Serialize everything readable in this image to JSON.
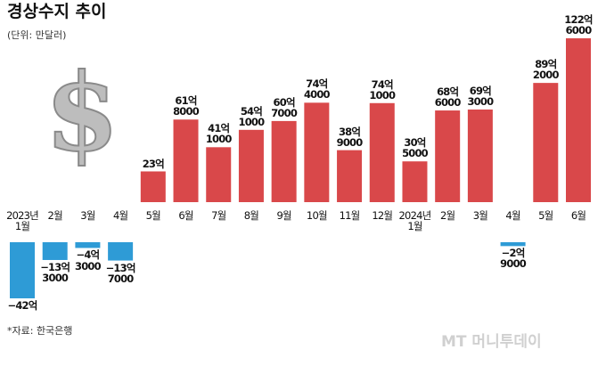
{
  "title": "경상수지 추이",
  "subtitle": "(단위: 만달러)",
  "source": "*자료: 한국은행",
  "watermark": "MT 머니투데이",
  "chart_data": {
    "type": "bar",
    "categories": [
      "2023년\n1월",
      "2월",
      "3월",
      "4월",
      "5월",
      "6월",
      "7월",
      "8월",
      "9월",
      "10월",
      "11월",
      "12월",
      "2024년\n1월",
      "2월",
      "3월",
      "4월",
      "5월",
      "6월"
    ],
    "values": [
      -420000,
      -133000,
      -43000,
      -137000,
      230000,
      618000,
      411000,
      541000,
      607000,
      744000,
      389000,
      741000,
      305000,
      686000,
      693000,
      -29000,
      892000,
      1226000
    ],
    "value_labels": [
      "−42억",
      "−13억\n3000",
      "−4억\n3000",
      "−13억\n7000",
      "23억",
      "61억\n8000",
      "41억\n1000",
      "54억\n1000",
      "60억\n7000",
      "74억\n4000",
      "38억\n9000",
      "74억\n1000",
      "30억\n5000",
      "68억\n6000",
      "69억\n3000",
      "−2억\n9000",
      "89억\n2000",
      "122억\n6000"
    ],
    "positive_color": "#d9484a",
    "negative_color": "#2e9bd6"
  }
}
